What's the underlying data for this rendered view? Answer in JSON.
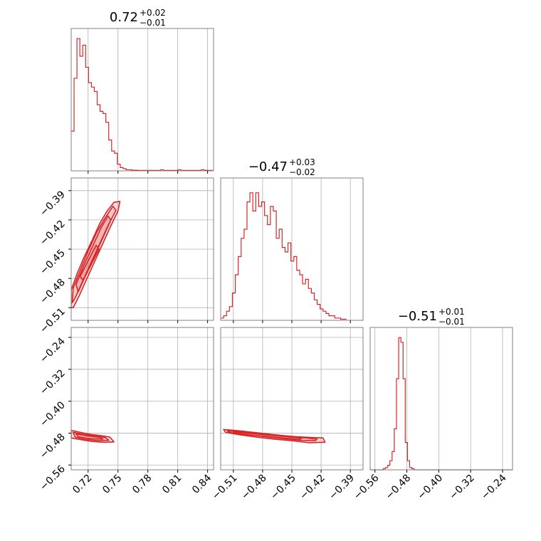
{
  "chart_data": {
    "type": "corner",
    "colors": {
      "main": "#d62728",
      "grid": "#b0b0b0",
      "frame": "#808080"
    },
    "parameters": [
      {
        "range": [
          0.703,
          0.846
        ],
        "ticks": [
          "0.72",
          "0.75",
          "0.78",
          "0.81",
          "0.84"
        ],
        "title": {
          "main": "0.72",
          "sup": "+0.02",
          "sub": "−0.01"
        }
      },
      {
        "range": [
          -0.523,
          -0.377
        ],
        "ticks": [
          "−0.51",
          "−0.48",
          "−0.45",
          "−0.42",
          "−0.39"
        ],
        "title": {
          "main": "−0.47",
          "sup": "+0.03",
          "sub": "−0.02"
        }
      },
      {
        "range": [
          -0.572,
          -0.215
        ],
        "ticks": [
          "−0.56",
          "−0.48",
          "−0.40",
          "−0.32",
          "−0.24"
        ],
        "title": {
          "main": "−0.51",
          "sup": "+0.01",
          "sub": "−0.01"
        }
      }
    ],
    "histograms": [
      {
        "param": 0,
        "ymax": 62,
        "edges_start": 0.703,
        "bin_width": 0.0029,
        "counts": [
          18,
          42,
          60,
          52,
          57,
          47,
          40,
          38,
          36,
          30,
          27,
          26,
          22,
          14,
          9,
          8,
          3,
          1.5,
          1,
          0.5,
          0.5,
          0.3,
          0.3,
          0.2,
          0.2,
          0.2,
          0.2,
          0.2,
          0.2,
          0.2,
          0.2,
          0.5,
          0.2,
          0.2,
          0.2,
          0.2,
          0.2,
          0.5,
          0.2,
          0.2,
          0.2,
          0.2,
          0.2,
          0.2,
          0.2,
          0.5,
          0.3,
          0.2,
          0.2
        ]
      },
      {
        "param": 1,
        "ymax": 60,
        "edges_start": -0.523,
        "bin_width": 0.003,
        "counts": [
          1,
          2,
          4,
          6,
          12,
          20,
          28,
          36,
          40,
          52,
          56,
          48,
          56,
          50,
          52,
          46,
          42,
          50,
          48,
          36,
          40,
          32,
          30,
          34,
          26,
          28,
          22,
          20,
          16,
          18,
          14,
          12,
          9,
          7,
          5,
          4,
          3,
          2,
          2,
          1,
          1,
          0.5,
          0.5
        ]
      },
      {
        "param": 2,
        "ymax": 60,
        "edges_start": -0.572,
        "bin_width": 0.0055,
        "counts": [
          0,
          0,
          0,
          0,
          0,
          0,
          0.5,
          1,
          2,
          4,
          8,
          18,
          40,
          58,
          56,
          40,
          12,
          4,
          1,
          0.5,
          0,
          0,
          0,
          0,
          0,
          0,
          0,
          0,
          0,
          0,
          0,
          0,
          0,
          0,
          0,
          0,
          0,
          0,
          0,
          0,
          0,
          0,
          0,
          0,
          0,
          0,
          0,
          0,
          0,
          0,
          0,
          0,
          0,
          0,
          0,
          0,
          0,
          0,
          0,
          0,
          0,
          0,
          0,
          0,
          0
        ]
      }
    ],
    "joint_distributions": [
      {
        "x_param": 0,
        "y_param": 1,
        "contours": [
          [
            [
              0.703,
              -0.492
            ],
            [
              0.709,
              -0.475
            ],
            [
              0.716,
              -0.458
            ],
            [
              0.724,
              -0.441
            ],
            [
              0.732,
              -0.423
            ],
            [
              0.739,
              -0.411
            ],
            [
              0.746,
              -0.402
            ],
            [
              0.752,
              -0.401
            ],
            [
              0.75,
              -0.411
            ],
            [
              0.742,
              -0.428
            ],
            [
              0.734,
              -0.446
            ],
            [
              0.726,
              -0.464
            ],
            [
              0.718,
              -0.482
            ],
            [
              0.711,
              -0.498
            ],
            [
              0.705,
              -0.51
            ],
            [
              0.703,
              -0.51
            ]
          ],
          [
            [
              0.705,
              -0.49
            ],
            [
              0.712,
              -0.472
            ],
            [
              0.72,
              -0.452
            ],
            [
              0.729,
              -0.432
            ],
            [
              0.737,
              -0.418
            ],
            [
              0.745,
              -0.406
            ],
            [
              0.748,
              -0.41
            ],
            [
              0.74,
              -0.426
            ],
            [
              0.731,
              -0.446
            ],
            [
              0.722,
              -0.466
            ],
            [
              0.714,
              -0.484
            ],
            [
              0.707,
              -0.5
            ],
            [
              0.704,
              -0.505
            ]
          ],
          [
            [
              0.708,
              -0.486
            ],
            [
              0.716,
              -0.466
            ],
            [
              0.725,
              -0.446
            ],
            [
              0.733,
              -0.428
            ],
            [
              0.74,
              -0.416
            ],
            [
              0.743,
              -0.42
            ],
            [
              0.735,
              -0.438
            ],
            [
              0.726,
              -0.458
            ],
            [
              0.717,
              -0.478
            ],
            [
              0.71,
              -0.494
            ]
          ],
          [
            [
              0.712,
              -0.478
            ],
            [
              0.72,
              -0.462
            ],
            [
              0.728,
              -0.446
            ],
            [
              0.731,
              -0.45
            ],
            [
              0.723,
              -0.466
            ],
            [
              0.715,
              -0.482
            ]
          ]
        ]
      },
      {
        "x_param": 0,
        "y_param": 2,
        "contours": [
          [
            [
              0.703,
              -0.473
            ],
            [
              0.712,
              -0.478
            ],
            [
              0.722,
              -0.483
            ],
            [
              0.732,
              -0.486
            ],
            [
              0.742,
              -0.49
            ],
            [
              0.746,
              -0.502
            ],
            [
              0.736,
              -0.503
            ],
            [
              0.724,
              -0.501
            ],
            [
              0.712,
              -0.496
            ],
            [
              0.703,
              -0.492
            ]
          ],
          [
            [
              0.705,
              -0.478
            ],
            [
              0.715,
              -0.483
            ],
            [
              0.726,
              -0.487
            ],
            [
              0.737,
              -0.491
            ],
            [
              0.741,
              -0.498
            ],
            [
              0.73,
              -0.499
            ],
            [
              0.718,
              -0.496
            ],
            [
              0.707,
              -0.49
            ]
          ],
          [
            [
              0.708,
              -0.482
            ],
            [
              0.72,
              -0.487
            ],
            [
              0.732,
              -0.491
            ],
            [
              0.735,
              -0.495
            ],
            [
              0.722,
              -0.494
            ],
            [
              0.71,
              -0.489
            ]
          ]
        ]
      },
      {
        "x_param": 1,
        "y_param": 2,
        "contours": [
          [
            [
              -0.52,
              -0.471
            ],
            [
              -0.505,
              -0.474
            ],
            [
              -0.49,
              -0.478
            ],
            [
              -0.475,
              -0.482
            ],
            [
              -0.46,
              -0.486
            ],
            [
              -0.445,
              -0.489
            ],
            [
              -0.43,
              -0.491
            ],
            [
              -0.418,
              -0.492
            ],
            [
              -0.416,
              -0.503
            ],
            [
              -0.432,
              -0.504
            ],
            [
              -0.45,
              -0.499
            ],
            [
              -0.468,
              -0.495
            ],
            [
              -0.486,
              -0.49
            ],
            [
              -0.504,
              -0.484
            ],
            [
              -0.518,
              -0.478
            ]
          ],
          [
            [
              -0.516,
              -0.474
            ],
            [
              -0.5,
              -0.477
            ],
            [
              -0.484,
              -0.481
            ],
            [
              -0.468,
              -0.485
            ],
            [
              -0.452,
              -0.489
            ],
            [
              -0.436,
              -0.492
            ],
            [
              -0.424,
              -0.495
            ],
            [
              -0.426,
              -0.499
            ],
            [
              -0.442,
              -0.498
            ],
            [
              -0.458,
              -0.494
            ],
            [
              -0.474,
              -0.49
            ],
            [
              -0.49,
              -0.485
            ],
            [
              -0.506,
              -0.481
            ],
            [
              -0.515,
              -0.478
            ]
          ],
          [
            [
              -0.51,
              -0.477
            ],
            [
              -0.492,
              -0.481
            ],
            [
              -0.474,
              -0.485
            ],
            [
              -0.456,
              -0.489
            ],
            [
              -0.44,
              -0.493
            ],
            [
              -0.442,
              -0.496
            ],
            [
              -0.46,
              -0.492
            ],
            [
              -0.478,
              -0.488
            ],
            [
              -0.496,
              -0.484
            ],
            [
              -0.509,
              -0.48
            ]
          ]
        ]
      }
    ]
  }
}
